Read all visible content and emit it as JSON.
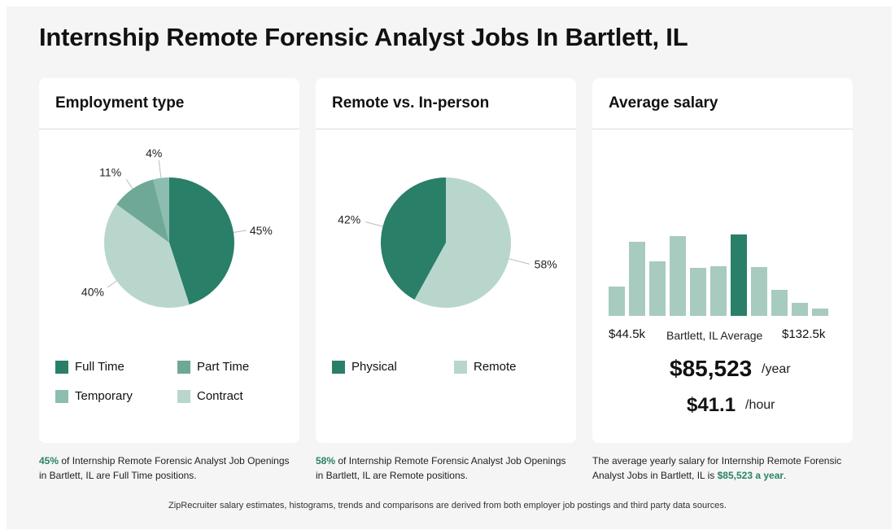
{
  "page_title": "Internship Remote Forensic Analyst Jobs In Bartlett, IL",
  "colors": {
    "full_time": "#2a7f69",
    "part_time": "#6fa897",
    "temporary": "#8cbdb0",
    "contract": "#b9d6cd",
    "physical": "#2a7f69",
    "remote": "#b9d6cd",
    "bar": "#a7cbbf",
    "bar_highlight": "#2a7f69",
    "accent_text": "#2a8366"
  },
  "employment": {
    "title": "Employment type",
    "legend": [
      "Full Time",
      "Part Time",
      "Temporary",
      "Contract"
    ],
    "caption_pct": "45%",
    "caption_rest": " of Internship Remote Forensic Analyst Job Openings in Bartlett, IL are Full Time positions."
  },
  "remote": {
    "title": "Remote vs. In-person",
    "legend": [
      "Physical",
      "Remote"
    ],
    "caption_pct": "58%",
    "caption_rest": " of Internship Remote Forensic Analyst Job Openings in Bartlett, IL are Remote positions."
  },
  "salary": {
    "title": "Average salary",
    "min_label": "$44.5k",
    "avg_label": "Bartlett, IL Average",
    "max_label": "$132.5k",
    "yearly": "$85,523",
    "yearly_unit": "/year",
    "hourly": "$41.1",
    "hourly_unit": "/hour",
    "caption_pre": "The average yearly salary for Internship Remote Forensic Analyst Jobs in Bartlett, IL is ",
    "caption_amount": "$85,523 a year",
    "caption_post": "."
  },
  "footer": "ZipRecruiter salary estimates, histograms, trends and comparisons are derived from both employer job postings and third party data sources.",
  "chart_data": [
    {
      "type": "pie",
      "title": "Employment type",
      "categories": [
        "Full Time",
        "Contract",
        "Part Time",
        "Temporary"
      ],
      "values": [
        45,
        40,
        11,
        4
      ],
      "labels": [
        "45%",
        "40%",
        "11%",
        "4%"
      ]
    },
    {
      "type": "pie",
      "title": "Remote vs. In-person",
      "categories": [
        "Remote",
        "Physical"
      ],
      "values": [
        58,
        42
      ],
      "labels": [
        "58%",
        "42%"
      ]
    },
    {
      "type": "bar",
      "title": "Average salary",
      "values": [
        36,
        91,
        67,
        98,
        59,
        61,
        100,
        60,
        32,
        16,
        9
      ],
      "highlight_index": 6,
      "x_range_labels": [
        "$44.5k",
        "$132.5k"
      ]
    }
  ]
}
